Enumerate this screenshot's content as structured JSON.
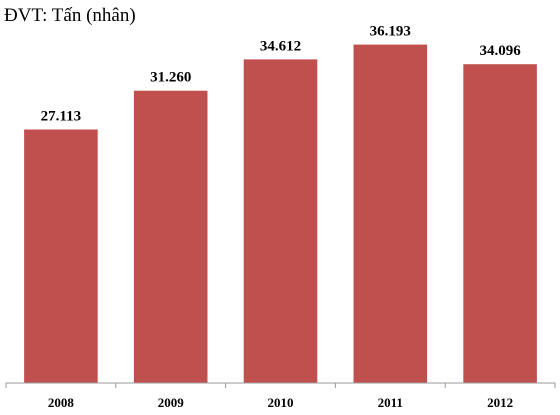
{
  "chart_data": {
    "type": "bar",
    "unit_label": "ĐVT: Tấn (nhân)",
    "categories": [
      "2008",
      "2009",
      "2010",
      "2011",
      "2012"
    ],
    "values": [
      27113,
      31260,
      34612,
      36193,
      34096
    ],
    "value_labels": [
      "27.113",
      "31.260",
      "34.612",
      "36.193",
      "34.096"
    ],
    "ylim": [
      0,
      40000
    ],
    "grid": false,
    "bar_color": "#c0504d"
  }
}
